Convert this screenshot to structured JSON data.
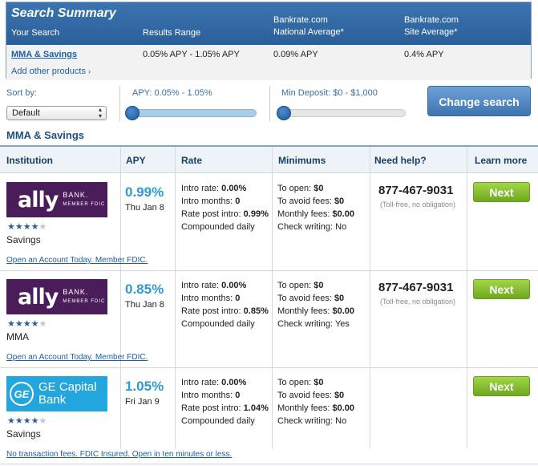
{
  "summary": {
    "title": "Search Summary",
    "col_your_search": "Your Search",
    "col_results_range": "Results Range",
    "col_natl_line1": "Bankrate.com",
    "col_natl_line2": "National Average*",
    "col_site_line1": "Bankrate.com",
    "col_site_line2": "Site Average*",
    "search_link": "MMA & Savings",
    "results_range": "0.05% APY - 1.05% APY",
    "national_average": "0.09% APY",
    "site_average": "0.4% APY",
    "add_products": "Add other products"
  },
  "filters": {
    "sort_label": "Sort by:",
    "sort_value": "Default",
    "apy_label": "APY: 0.05% - 1.05%",
    "deposit_label": "Min Deposit: $0 - $1,000",
    "change_button": "Change search"
  },
  "section_title": "MMA & Savings",
  "table": {
    "headers": [
      "Institution",
      "APY",
      "Rate",
      "Minimums",
      "Need help?",
      "Learn more"
    ],
    "rows": [
      {
        "logo_text": "ally",
        "logo_side": "BANK.",
        "logo_sub": "MEMBER FDIC",
        "stars": "★★★★",
        "stars_off": "★",
        "account_type": "Savings",
        "apy": "0.99%",
        "date": "Thu Jan 8",
        "rate_lines": [
          {
            "k": "Intro rate:",
            "v": "0.00%"
          },
          {
            "k": "Intro months:",
            "v": "0"
          },
          {
            "k": "Rate post intro:",
            "v": "0.99%"
          },
          {
            "k": "Compounded daily",
            "v": ""
          }
        ],
        "min_lines": [
          {
            "k": "To open:",
            "v": "$0"
          },
          {
            "k": "To avoid fees:",
            "v": "$0"
          },
          {
            "k": "Monthly fees:",
            "v": "$0.00"
          },
          {
            "k": "Check writing:",
            "v": "No"
          }
        ],
        "phone": "877-467-9031",
        "phone_note": "(Toll-free, no obligation)",
        "next": "Next",
        "promo": "Open an Account Today. Member FDIC."
      },
      {
        "logo_text": "ally",
        "logo_side": "BANK.",
        "logo_sub": "MEMBER FDIC",
        "stars": "★★★★",
        "stars_off": "★",
        "account_type": "MMA",
        "apy": "0.85%",
        "date": "Thu Jan 8",
        "rate_lines": [
          {
            "k": "Intro rate:",
            "v": "0.00%"
          },
          {
            "k": "Intro months:",
            "v": "0"
          },
          {
            "k": "Rate post intro:",
            "v": "0.85%"
          },
          {
            "k": "Compounded daily",
            "v": ""
          }
        ],
        "min_lines": [
          {
            "k": "To open:",
            "v": "$0"
          },
          {
            "k": "To avoid fees:",
            "v": "$0"
          },
          {
            "k": "Monthly fees:",
            "v": "$0.00"
          },
          {
            "k": "Check writing:",
            "v": "Yes"
          }
        ],
        "phone": "877-467-9031",
        "phone_note": "(Toll-free, no obligation)",
        "next": "Next",
        "promo": "Open an Account Today. Member FDIC."
      },
      {
        "logo_text": "GE Capital",
        "logo_side": "Bank",
        "logo_mark": "GE",
        "stars": "★★★★",
        "stars_off": "★",
        "account_type": "Savings",
        "apy": "1.05%",
        "date": "Fri Jan 9",
        "rate_lines": [
          {
            "k": "Intro rate:",
            "v": "0.00%"
          },
          {
            "k": "Intro months:",
            "v": "0"
          },
          {
            "k": "Rate post intro:",
            "v": "1.04%"
          },
          {
            "k": "Compounded daily",
            "v": ""
          }
        ],
        "min_lines": [
          {
            "k": "To open:",
            "v": "$0"
          },
          {
            "k": "To avoid fees:",
            "v": "$0"
          },
          {
            "k": "Monthly fees:",
            "v": "$0.00"
          },
          {
            "k": "Check writing:",
            "v": "No"
          }
        ],
        "next": "Next",
        "promo": "No transaction fees. FDIC Insured. Open in ten minutes or less."
      }
    ]
  },
  "colors": {
    "accent": "#2b9ad6",
    "header": "#2b5f99",
    "ally": "#4a1d5a",
    "ge": "#23a6dd",
    "next": "#7cb82a"
  }
}
